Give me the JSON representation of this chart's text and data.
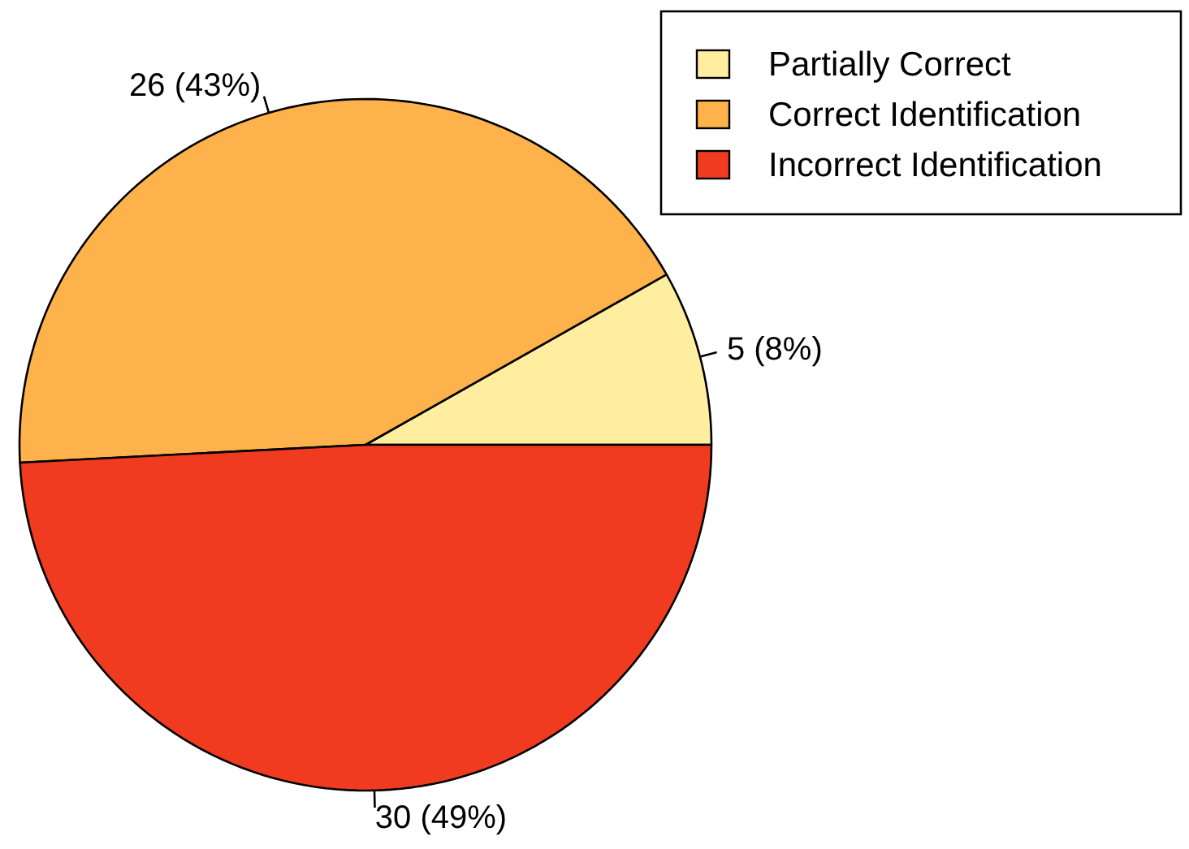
{
  "chart_data": {
    "type": "pie",
    "categories": [
      "Partially Correct",
      "Correct Identification",
      "Incorrect Identification"
    ],
    "values": [
      5,
      26,
      30
    ],
    "colors": [
      "#ffeda0",
      "#feb24c",
      "#f03b20"
    ],
    "value_labels": [
      "5 (8%)",
      "26 (43%)",
      "30 (49%)"
    ],
    "legend": "top right"
  }
}
